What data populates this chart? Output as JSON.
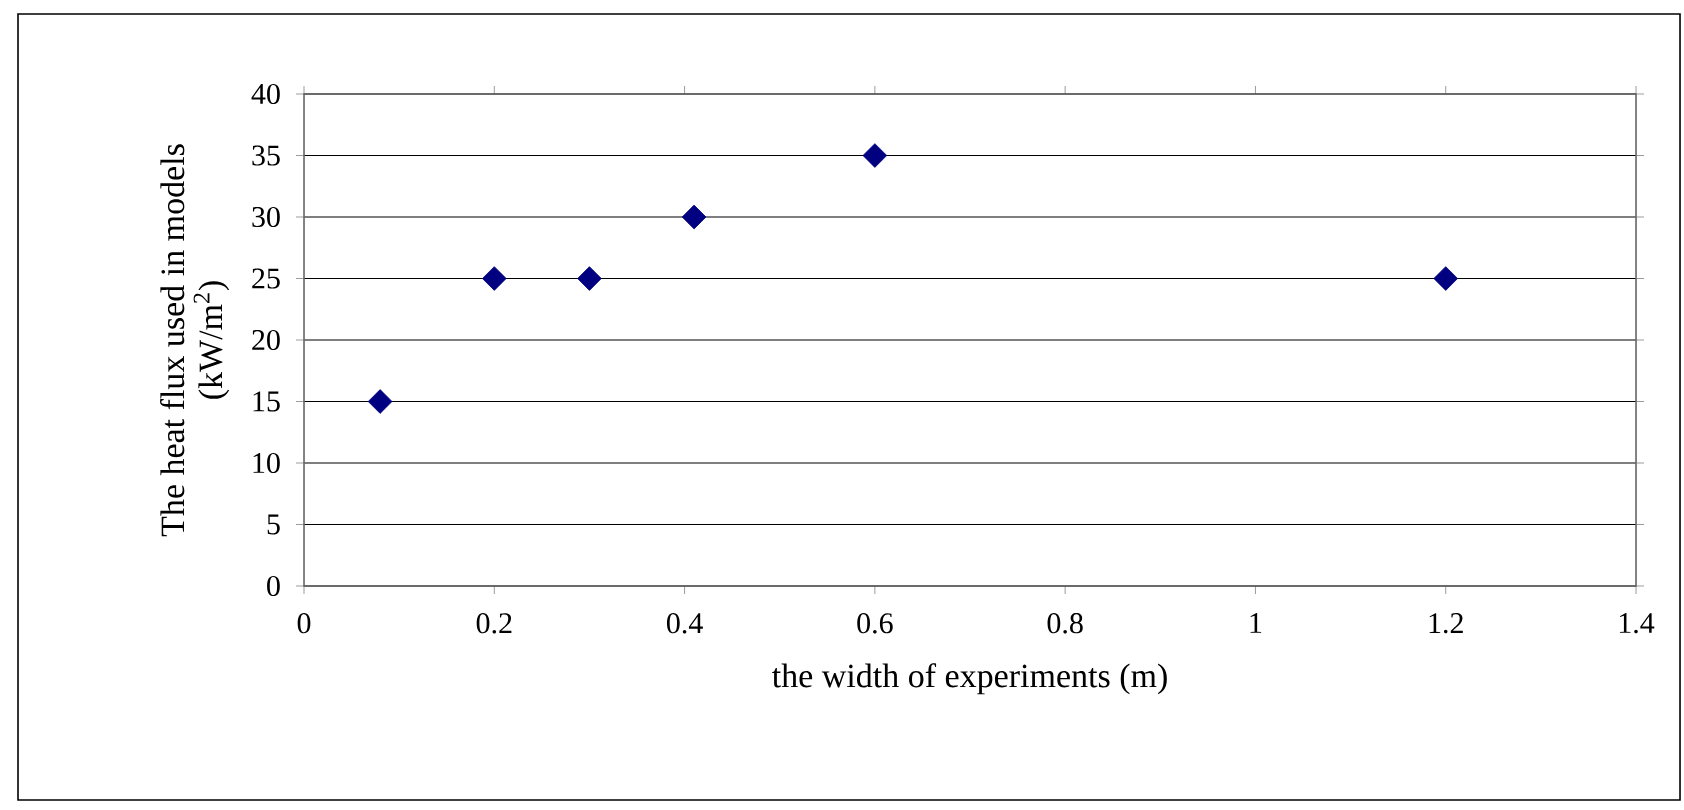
{
  "chart_data": {
    "type": "scatter",
    "xlabel": "the width of experiments (m)",
    "ylabel": "The heat flux used in models (kW/m$^{2}$)",
    "x": [
      0.08,
      0.2,
      0.3,
      0.41,
      0.6,
      1.2
    ],
    "values": [
      15,
      25,
      25,
      30,
      35,
      25
    ],
    "color": "#000080",
    "marker": "diamond",
    "xlim": [
      0,
      1.4
    ],
    "xticks": [
      0,
      0.2,
      0.4,
      0.6,
      0.8,
      1,
      1.2,
      1.4
    ],
    "ylim": [
      0,
      40
    ],
    "yticks": [
      0,
      5,
      10,
      15,
      20,
      25,
      30,
      35,
      40
    ],
    "grid": "y"
  }
}
